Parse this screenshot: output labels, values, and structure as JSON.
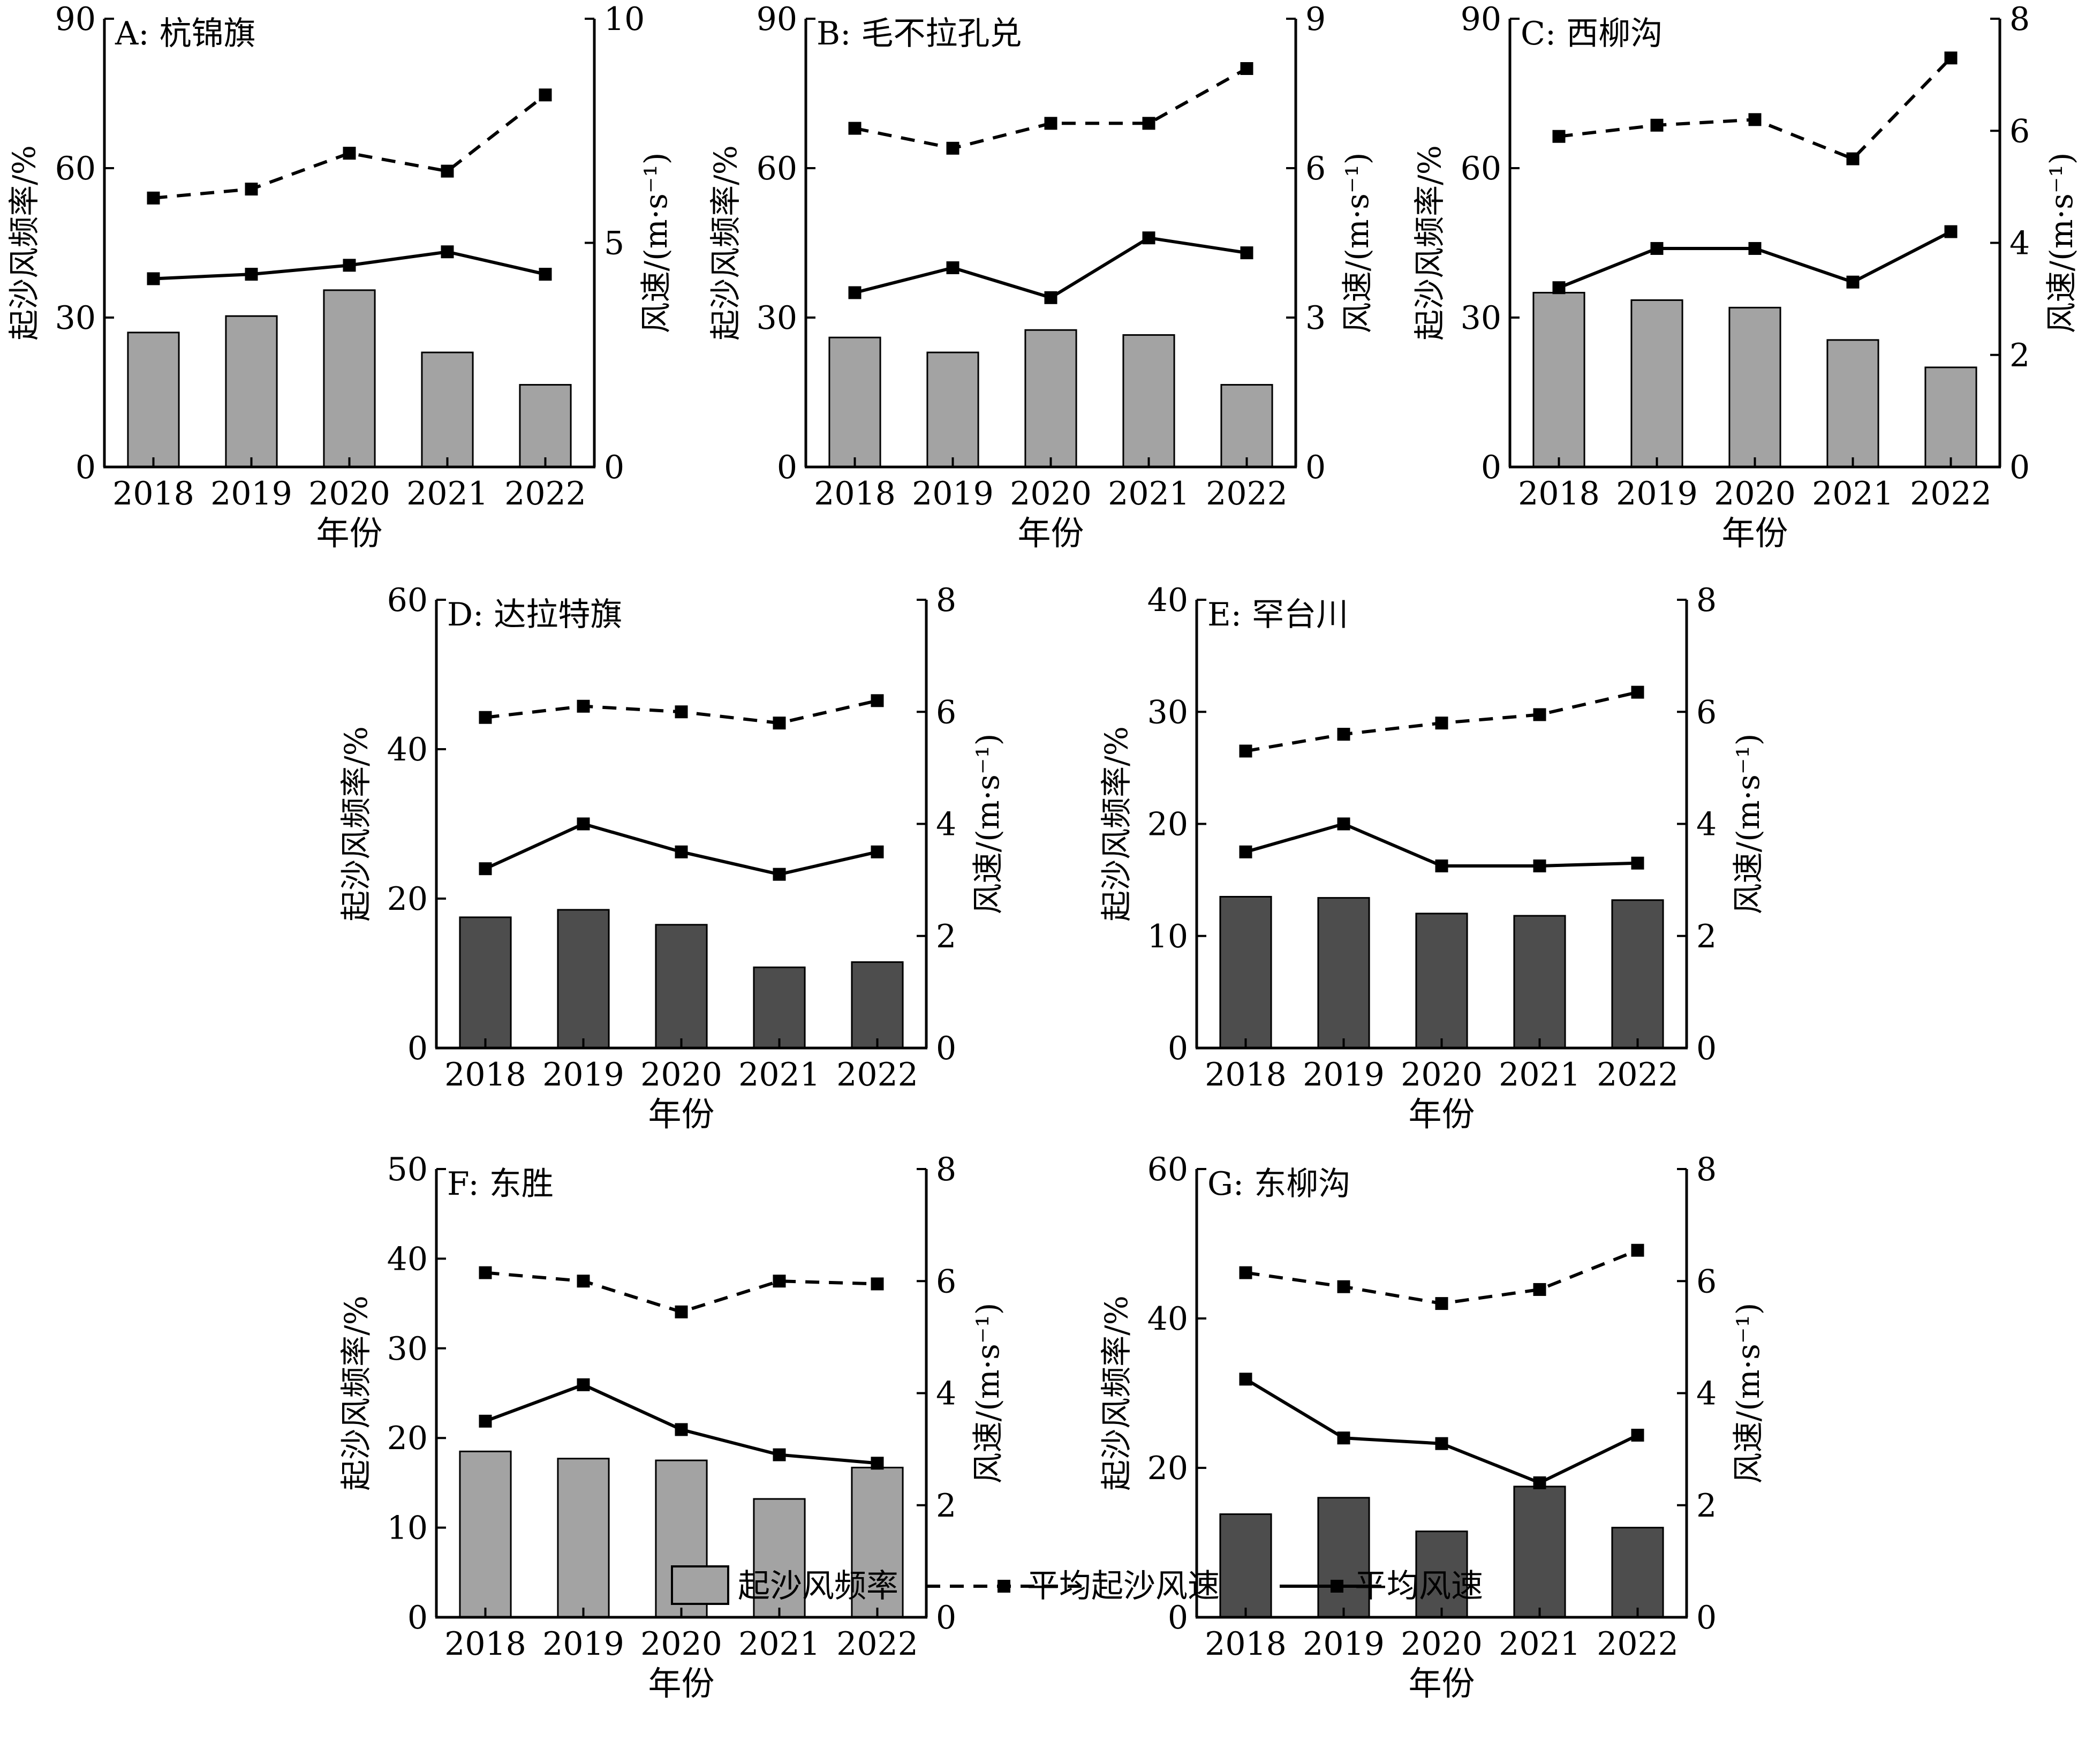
{
  "legend": {
    "bar_label": "起沙风频率",
    "dashed_label": "平均起沙风速",
    "solid_label": "平均风速"
  },
  "colors": {
    "bar_light": "#a3a3a3",
    "bar_dark": "#4d4d4d",
    "line": "#000000"
  },
  "chart_data": [
    {
      "type": "bar",
      "title": "A: 杭锦旗",
      "bar_color": "light",
      "categories": [
        "2018",
        "2019",
        "2020",
        "2021",
        "2022"
      ],
      "xlabel": "年份",
      "ylabel_left": "起沙风频率/%",
      "ylabel_right": "风速/(m·s⁻¹)",
      "ylim_left": [
        0,
        90
      ],
      "yticks_left": [
        0,
        30,
        60,
        90
      ],
      "ylim_right": [
        0,
        10
      ],
      "yticks_right": [
        0,
        5,
        10
      ],
      "series": [
        {
          "name": "起沙风频率",
          "axis": "left",
          "kind": "bar",
          "values": [
            27,
            30.3,
            35.5,
            23,
            16.5
          ]
        },
        {
          "name": "平均起沙风速",
          "axis": "right",
          "kind": "dashed-line",
          "values": [
            6.0,
            6.2,
            7.0,
            6.6,
            8.3
          ]
        },
        {
          "name": "平均风速",
          "axis": "right",
          "kind": "solid-line",
          "values": [
            4.2,
            4.3,
            4.5,
            4.8,
            4.3
          ]
        }
      ]
    },
    {
      "type": "bar",
      "title": "B: 毛不拉孔兑",
      "bar_color": "light",
      "categories": [
        "2018",
        "2019",
        "2020",
        "2021",
        "2022"
      ],
      "xlabel": "年份",
      "ylabel_left": "起沙风频率/%",
      "ylabel_right": "风速/(m·s⁻¹)",
      "ylim_left": [
        0,
        90
      ],
      "yticks_left": [
        0,
        30,
        60,
        90
      ],
      "ylim_right": [
        0,
        9
      ],
      "yticks_right": [
        0,
        3,
        6,
        9
      ],
      "series": [
        {
          "name": "起沙风频率",
          "axis": "left",
          "kind": "bar",
          "values": [
            26,
            23,
            27.5,
            26.5,
            16.5
          ]
        },
        {
          "name": "平均起沙风速",
          "axis": "right",
          "kind": "dashed-line",
          "values": [
            6.8,
            6.4,
            6.9,
            6.9,
            8.0
          ]
        },
        {
          "name": "平均风速",
          "axis": "right",
          "kind": "solid-line",
          "values": [
            3.5,
            4.0,
            3.4,
            4.6,
            4.3
          ]
        }
      ]
    },
    {
      "type": "bar",
      "title": "C: 西柳沟",
      "bar_color": "light",
      "categories": [
        "2018",
        "2019",
        "2020",
        "2021",
        "2022"
      ],
      "xlabel": "年份",
      "ylabel_left": "起沙风频率/%",
      "ylabel_right": "风速/(m·s⁻¹)",
      "ylim_left": [
        0,
        90
      ],
      "yticks_left": [
        0,
        30,
        60,
        90
      ],
      "ylim_right": [
        0,
        8
      ],
      "yticks_right": [
        0,
        2,
        4,
        6,
        8
      ],
      "series": [
        {
          "name": "起沙风频率",
          "axis": "left",
          "kind": "bar",
          "values": [
            35,
            33.5,
            32,
            25.5,
            20
          ]
        },
        {
          "name": "平均起沙风速",
          "axis": "right",
          "kind": "dashed-line",
          "values": [
            5.9,
            6.1,
            6.2,
            5.5,
            7.3
          ]
        },
        {
          "name": "平均风速",
          "axis": "right",
          "kind": "solid-line",
          "values": [
            3.2,
            3.9,
            3.9,
            3.3,
            4.2
          ]
        }
      ]
    },
    {
      "type": "bar",
      "title": "D: 达拉特旗",
      "bar_color": "dark",
      "categories": [
        "2018",
        "2019",
        "2020",
        "2021",
        "2022"
      ],
      "xlabel": "年份",
      "ylabel_left": "起沙风频率/%",
      "ylabel_right": "风速/(m·s⁻¹)",
      "ylim_left": [
        0,
        60
      ],
      "yticks_left": [
        0,
        20,
        40,
        60
      ],
      "ylim_right": [
        0,
        8
      ],
      "yticks_right": [
        0,
        2,
        4,
        6,
        8
      ],
      "series": [
        {
          "name": "起沙风频率",
          "axis": "left",
          "kind": "bar",
          "values": [
            17.5,
            18.5,
            16.5,
            10.8,
            11.5
          ]
        },
        {
          "name": "平均起沙风速",
          "axis": "right",
          "kind": "dashed-line",
          "values": [
            5.9,
            6.1,
            6.0,
            5.8,
            6.2
          ]
        },
        {
          "name": "平均风速",
          "axis": "right",
          "kind": "solid-line",
          "values": [
            3.2,
            4.0,
            3.5,
            3.1,
            3.5
          ]
        }
      ]
    },
    {
      "type": "bar",
      "title": "E: 罕台川",
      "bar_color": "dark",
      "categories": [
        "2018",
        "2019",
        "2020",
        "2021",
        "2022"
      ],
      "xlabel": "年份",
      "ylabel_left": "起沙风频率/%",
      "ylabel_right": "风速/(m·s⁻¹)",
      "ylim_left": [
        0,
        40
      ],
      "yticks_left": [
        0,
        10,
        20,
        30,
        40
      ],
      "ylim_right": [
        0,
        8
      ],
      "yticks_right": [
        0,
        2,
        4,
        6,
        8
      ],
      "series": [
        {
          "name": "起沙风频率",
          "axis": "left",
          "kind": "bar",
          "values": [
            13.5,
            13.4,
            12,
            11.8,
            13.2
          ]
        },
        {
          "name": "平均起沙风速",
          "axis": "right",
          "kind": "dashed-line",
          "values": [
            5.3,
            5.6,
            5.8,
            5.95,
            6.35
          ]
        },
        {
          "name": "平均风速",
          "axis": "right",
          "kind": "solid-line",
          "values": [
            3.5,
            4.0,
            3.25,
            3.25,
            3.3
          ]
        }
      ]
    },
    {
      "type": "bar",
      "title": "F: 东胜",
      "bar_color": "light",
      "categories": [
        "2018",
        "2019",
        "2020",
        "2021",
        "2022"
      ],
      "xlabel": "年份",
      "ylabel_left": "起沙风频率/%",
      "ylabel_right": "风速/(m·s⁻¹)",
      "ylim_left": [
        0,
        50
      ],
      "yticks_left": [
        0,
        10,
        20,
        30,
        40,
        50
      ],
      "ylim_right": [
        0,
        8
      ],
      "yticks_right": [
        0,
        2,
        4,
        6,
        8
      ],
      "series": [
        {
          "name": "起沙风频率",
          "axis": "left",
          "kind": "bar",
          "values": [
            18.5,
            17.7,
            17.5,
            13.2,
            16.7
          ]
        },
        {
          "name": "平均起沙风速",
          "axis": "right",
          "kind": "dashed-line",
          "values": [
            6.15,
            6.0,
            5.45,
            6.0,
            5.95
          ]
        },
        {
          "name": "平均风速",
          "axis": "right",
          "kind": "solid-line",
          "values": [
            3.5,
            4.15,
            3.35,
            2.9,
            2.75
          ]
        }
      ]
    },
    {
      "type": "bar",
      "title": "G: 东柳沟",
      "bar_color": "dark",
      "categories": [
        "2018",
        "2019",
        "2020",
        "2021",
        "2022"
      ],
      "xlabel": "年份",
      "ylabel_left": "起沙风频率/%",
      "ylabel_right": "风速/(m·s⁻¹)",
      "ylim_left": [
        0,
        60
      ],
      "yticks_left": [
        0,
        20,
        40,
        60
      ],
      "ylim_right": [
        0,
        8
      ],
      "yticks_right": [
        0,
        2,
        4,
        6,
        8
      ],
      "series": [
        {
          "name": "起沙风频率",
          "axis": "left",
          "kind": "bar",
          "values": [
            13.8,
            16,
            11.5,
            17.5,
            12
          ]
        },
        {
          "name": "平均起沙风速",
          "axis": "right",
          "kind": "dashed-line",
          "values": [
            6.15,
            5.9,
            5.6,
            5.85,
            6.55
          ]
        },
        {
          "name": "平均风速",
          "axis": "right",
          "kind": "solid-line",
          "values": [
            4.25,
            3.2,
            3.1,
            2.4,
            3.25
          ]
        }
      ]
    }
  ]
}
